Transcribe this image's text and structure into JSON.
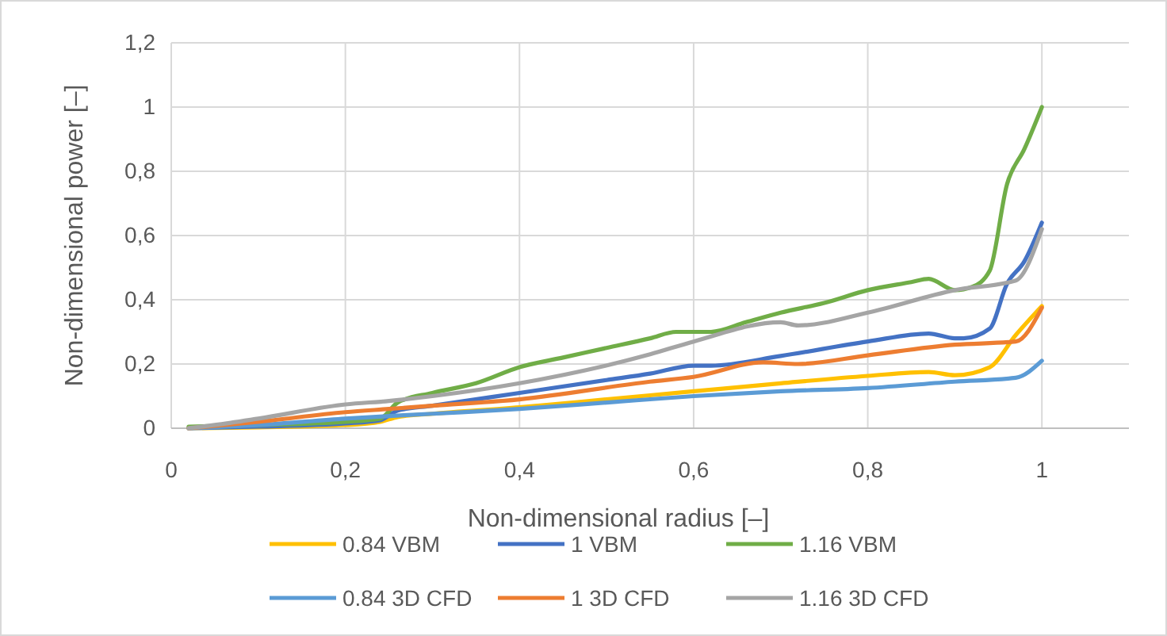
{
  "chart_data": {
    "type": "line",
    "xlabel": "Non-dimensional radius [–]",
    "ylabel": "Non-dimensional power [–]",
    "xlim": [
      0,
      1.1
    ],
    "xticks": [
      0,
      {
        "value": 0.2,
        "label": "0,2"
      },
      {
        "value": 0.4,
        "label": "0,4"
      },
      {
        "value": 0.6,
        "label": "0,6"
      },
      {
        "value": 0.8,
        "label": "0,8"
      },
      1
    ],
    "ylim": [
      0,
      1.2
    ],
    "yticks": [
      0,
      {
        "value": 0.2,
        "label": "0,2"
      },
      {
        "value": 0.4,
        "label": "0,4"
      },
      {
        "value": 0.6,
        "label": "0,6"
      },
      {
        "value": 0.8,
        "label": "0,8"
      },
      1,
      {
        "value": 1.2,
        "label": "1,2"
      }
    ],
    "grid": true,
    "legend": "bottom",
    "marker": "none",
    "line_style": "solid",
    "series": [
      {
        "name": "0.84 VBM",
        "color": "#ffc000",
        "x": [
          0.02,
          0.1,
          0.2,
          0.24,
          0.26,
          0.3,
          0.4,
          0.5,
          0.6,
          0.7,
          0.8,
          0.87,
          0.9,
          0.94,
          0.97,
          1.0
        ],
        "values": [
          0,
          0.003,
          0.01,
          0.02,
          0.035,
          0.045,
          0.065,
          0.09,
          0.115,
          0.14,
          0.163,
          0.175,
          0.165,
          0.19,
          0.29,
          0.38
        ]
      },
      {
        "name": "1 VBM",
        "color": "#4472c4",
        "x": [
          0.02,
          0.1,
          0.2,
          0.24,
          0.26,
          0.3,
          0.4,
          0.5,
          0.55,
          0.6,
          0.62,
          0.7,
          0.8,
          0.87,
          0.9,
          0.91,
          0.94,
          0.96,
          0.98,
          1.0
        ],
        "values": [
          0,
          0.005,
          0.015,
          0.025,
          0.055,
          0.07,
          0.11,
          0.15,
          0.17,
          0.195,
          0.195,
          0.225,
          0.27,
          0.295,
          0.28,
          0.28,
          0.31,
          0.45,
          0.52,
          0.64
        ]
      },
      {
        "name": "1.16 VBM",
        "color": "#70ad47",
        "x": [
          0.02,
          0.1,
          0.2,
          0.24,
          0.26,
          0.3,
          0.35,
          0.4,
          0.45,
          0.5,
          0.55,
          0.58,
          0.62,
          0.66,
          0.7,
          0.75,
          0.8,
          0.85,
          0.87,
          0.9,
          0.92,
          0.94,
          0.96,
          0.98,
          1.0
        ],
        "values": [
          0.005,
          0.01,
          0.02,
          0.03,
          0.08,
          0.11,
          0.14,
          0.19,
          0.22,
          0.25,
          0.28,
          0.3,
          0.3,
          0.33,
          0.36,
          0.39,
          0.43,
          0.455,
          0.465,
          0.43,
          0.44,
          0.49,
          0.76,
          0.87,
          1.0
        ]
      },
      {
        "name": "0.84 3D CFD",
        "color": "#5b9bd5",
        "x": [
          0.02,
          0.1,
          0.2,
          0.3,
          0.4,
          0.5,
          0.6,
          0.7,
          0.8,
          0.9,
          0.97,
          1.0
        ],
        "values": [
          0,
          0.01,
          0.03,
          0.045,
          0.06,
          0.08,
          0.1,
          0.115,
          0.125,
          0.145,
          0.157,
          0.21
        ]
      },
      {
        "name": "1 3D CFD",
        "color": "#ed7d31",
        "x": [
          0.02,
          0.1,
          0.2,
          0.25,
          0.3,
          0.4,
          0.55,
          0.6,
          0.68,
          0.72,
          0.8,
          0.9,
          0.97,
          1.0
        ],
        "values": [
          0,
          0.02,
          0.05,
          0.06,
          0.07,
          0.09,
          0.145,
          0.16,
          0.205,
          0.2,
          0.227,
          0.26,
          0.27,
          0.375
        ]
      },
      {
        "name": "1.16 3D CFD",
        "color": "#a5a5a5",
        "x": [
          0.02,
          0.05,
          0.1,
          0.2,
          0.25,
          0.3,
          0.4,
          0.55,
          0.6,
          0.7,
          0.72,
          0.8,
          0.9,
          0.97,
          1.0
        ],
        "values": [
          0,
          0.01,
          0.03,
          0.074,
          0.085,
          0.1,
          0.14,
          0.23,
          0.27,
          0.33,
          0.32,
          0.36,
          0.43,
          0.46,
          0.62
        ]
      }
    ]
  }
}
